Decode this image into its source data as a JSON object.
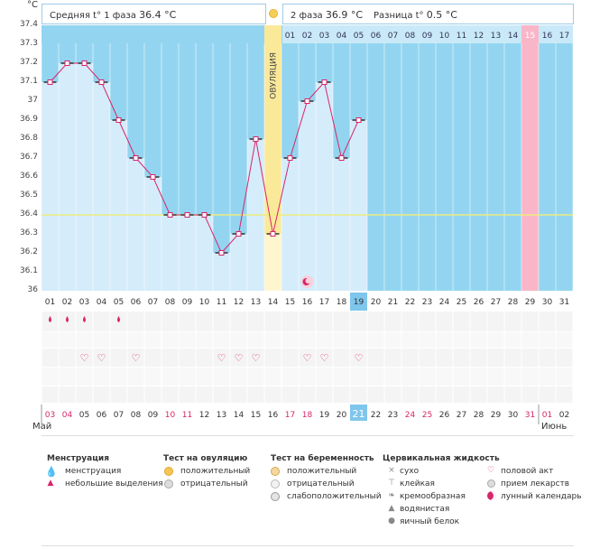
{
  "header": {
    "unit": "°C",
    "phase1_label": "Средняя t° 1 фаза",
    "phase1_value": "36.4 °C",
    "phase2_label": "2 фаза",
    "phase2_value": "36.9 °C",
    "diff_label": "Разница t°",
    "diff_value": "0.5 °C",
    "ovulation_label": "ОВУЛЯЦИЯ"
  },
  "chart_data": {
    "type": "line",
    "title": "",
    "ylabel": "°C",
    "ylim": [
      36,
      37.4
    ],
    "y_ticks": [
      "36",
      "36.1",
      "36.2",
      "36.3",
      "36.4",
      "36.5",
      "36.6",
      "36.7",
      "36.8",
      "36.9",
      "37",
      "37.1",
      "37.2",
      "37.3",
      "37.4"
    ],
    "cycle_days": [
      "01",
      "02",
      "03",
      "04",
      "05",
      "06",
      "07",
      "08",
      "09",
      "10",
      "11",
      "12",
      "13",
      "14",
      "15",
      "16",
      "17",
      "18",
      "19",
      "20",
      "21",
      "22",
      "23",
      "24",
      "25",
      "26",
      "27",
      "28",
      "29",
      "30",
      "31"
    ],
    "luteal_days": [
      "01",
      "02",
      "03",
      "04",
      "05",
      "06",
      "07",
      "08",
      "09",
      "10",
      "11",
      "12",
      "13",
      "14",
      "15",
      "16",
      "17"
    ],
    "series": [
      {
        "name": "temperature",
        "days": [
          1,
          2,
          3,
          4,
          5,
          6,
          7,
          8,
          9,
          10,
          11,
          12,
          13,
          14,
          15,
          16,
          17,
          18,
          19
        ],
        "values": [
          37.1,
          37.2,
          37.2,
          37.1,
          36.9,
          36.7,
          36.6,
          36.4,
          36.4,
          36.4,
          36.2,
          36.3,
          36.8,
          36.3,
          36.7,
          37.0,
          37.1,
          36.7,
          36.9
        ]
      }
    ],
    "coverline": 36.4,
    "ovulation_day": 14,
    "current_day": 19,
    "expected_period_day": 29,
    "calendar_dates": [
      "03",
      "04",
      "05",
      "06",
      "07",
      "08",
      "09",
      "10",
      "11",
      "12",
      "13",
      "14",
      "15",
      "16",
      "17",
      "18",
      "19",
      "20",
      "21",
      "22",
      "23",
      "24",
      "25",
      "26",
      "27",
      "28",
      "29",
      "30",
      "31",
      "01",
      "02"
    ],
    "calendar_red": [
      1,
      2,
      8,
      9,
      15,
      16,
      22,
      23,
      29,
      30
    ],
    "month_start": "Май",
    "month_next": "Июнь",
    "menstruation_days": [
      1,
      2,
      3,
      5
    ],
    "intercourse_days": [
      3,
      4,
      6,
      11,
      12,
      13,
      16,
      17,
      19
    ],
    "lunar_day": 16
  },
  "legend": {
    "menstruation": {
      "title": "Менструация",
      "items": [
        "менструация",
        "небольшие выделения"
      ]
    },
    "ovulation_test": {
      "title": "Тест на овуляцию",
      "items": [
        "положительный",
        "отрицательный"
      ]
    },
    "pregnancy_test": {
      "title": "Тест на беременность",
      "items": [
        "положительный",
        "отрицательный",
        "слабоположительный"
      ]
    },
    "cervical": {
      "title": "Цервикальная жидкость",
      "items": [
        "сухо",
        "клейкая",
        "кремообразная",
        "водянистая",
        "яичный белок"
      ]
    },
    "other": {
      "items": [
        "половой акт",
        "прием лекарств",
        "лунный календарь"
      ]
    }
  },
  "colors": {
    "sky": "#93d5f0",
    "bar": "#d5ecfb",
    "ovulation": "#fbe99a",
    "period": "#f9b6c8",
    "line": "#d8256a",
    "coverline": "#ecec80",
    "current": "#7fc6ec"
  }
}
